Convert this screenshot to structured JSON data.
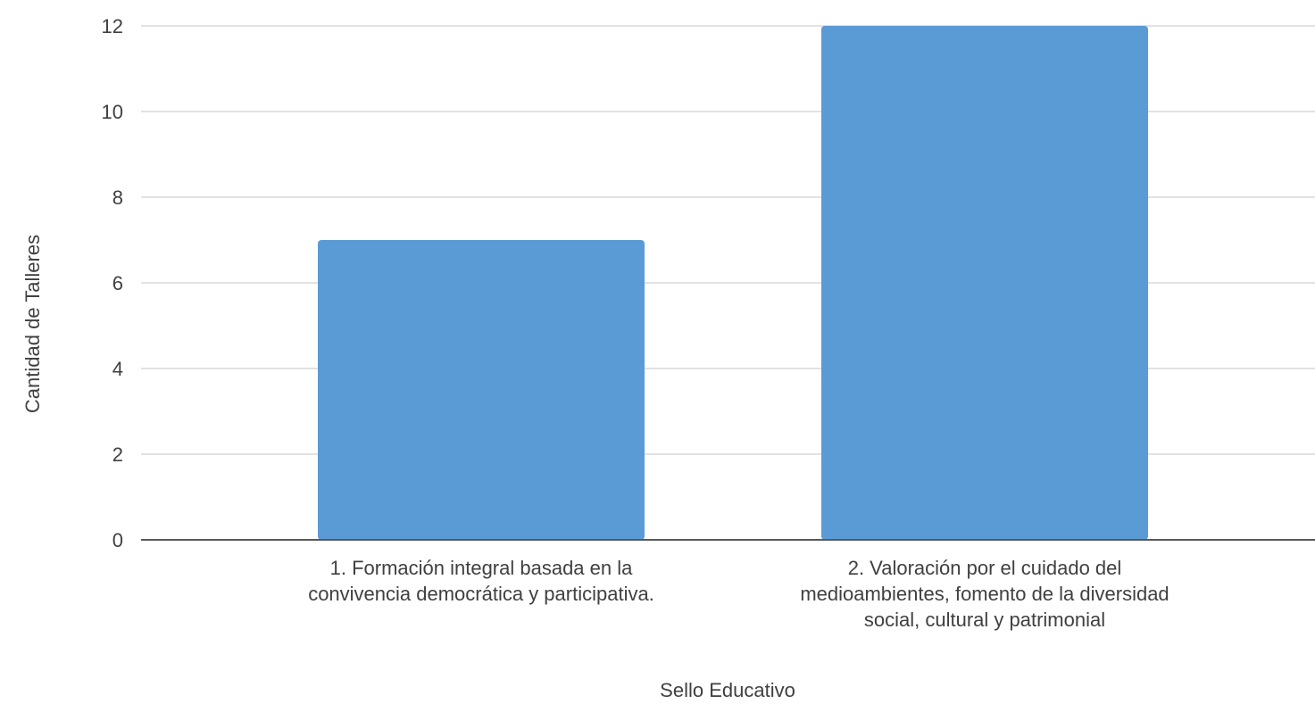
{
  "chart_data": {
    "type": "bar",
    "title": "",
    "xlabel": "Sello Educativo",
    "ylabel": "Cantidad de Talleres",
    "ylim": [
      0,
      12
    ],
    "yticks": [
      0,
      2,
      4,
      6,
      8,
      10,
      12
    ],
    "grid": true,
    "legend": "none",
    "bar_color": "#5b9bd5",
    "categories": [
      "1. Formación integral basada en la convivencia democrática y participativa.",
      "2. Valoración por el cuidado del medioambientes, fomento de la diversidad social, cultural y patrimonial"
    ],
    "category_lines": [
      [
        "1. Formación integral basada en la",
        "convivencia democrática y participativa."
      ],
      [
        "2. Valoración por el cuidado del",
        "medioambientes, fomento de la diversidad",
        "social, cultural y patrimonial"
      ]
    ],
    "values": [
      7,
      12
    ]
  }
}
